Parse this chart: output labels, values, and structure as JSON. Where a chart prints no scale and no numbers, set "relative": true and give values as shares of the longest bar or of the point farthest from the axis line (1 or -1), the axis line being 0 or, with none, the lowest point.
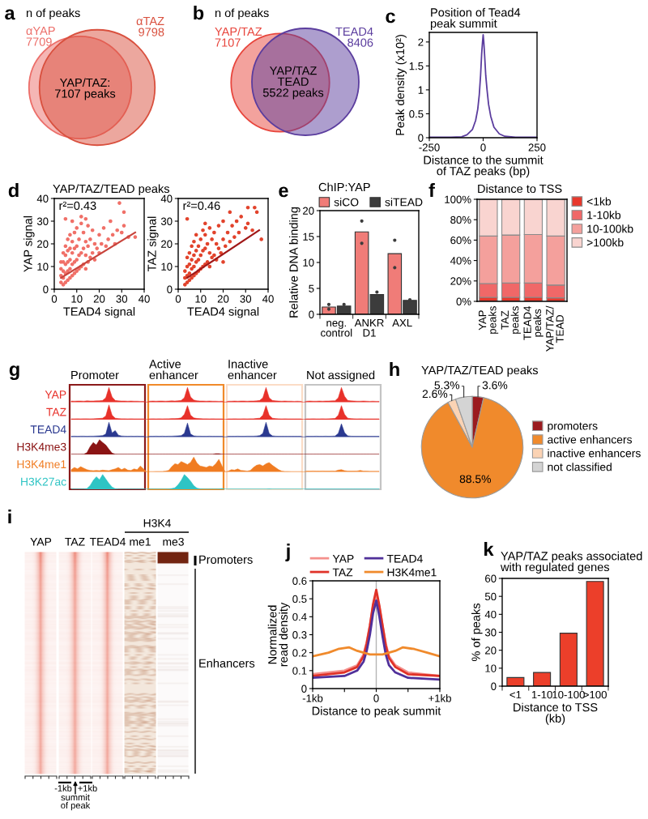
{
  "chart_data": [
    {
      "type": "other",
      "title": "a",
      "subtitle": "n of peaks",
      "categories": [
        "αYAP",
        "αTAZ"
      ],
      "values": [
        7709,
        9798
      ],
      "value_labels": [
        "7709",
        "9798"
      ],
      "colors": [
        "#ec6e69",
        "#d9503e"
      ],
      "annotations": [
        "YAP/TAZ:\n7107 peaks"
      ]
    },
    {
      "type": "other",
      "title": "b",
      "subtitle": "n of peaks",
      "categories": [
        "YAP/TAZ",
        "TEAD4"
      ],
      "values": [
        7107,
        8406
      ],
      "value_labels": [
        "7107",
        "8406"
      ],
      "colors": [
        "#e8453c",
        "#5b3d9e"
      ],
      "annotations": [
        "YAP/TAZ\nTEAD\n5522 peaks"
      ]
    },
    {
      "type": "line",
      "title": "c",
      "subtitle": "Position of Tead4\npeak summit",
      "xlabel": "Distance to the summit\nof TAZ peaks (bp)",
      "ylabel": "Peak density (x10²)",
      "x": [
        -250,
        -200,
        -150,
        -100,
        -75,
        -50,
        -35,
        -25,
        -18,
        -12,
        -7,
        -3,
        0,
        3,
        7,
        12,
        18,
        25,
        35,
        50,
        75,
        100,
        150,
        200,
        250
      ],
      "values": [
        0.01,
        0.01,
        0.01,
        0.02,
        0.06,
        0.17,
        0.36,
        0.6,
        0.9,
        1.3,
        1.75,
        2.0,
        2.15,
        2.0,
        1.7,
        1.3,
        1.0,
        0.7,
        0.45,
        0.22,
        0.08,
        0.03,
        0.01,
        0.01,
        0.01
      ],
      "color": "#5b3d9e",
      "xlim": [
        -250,
        250
      ],
      "xticks": [
        -250,
        0,
        250
      ],
      "ylim": [
        0,
        2.2
      ],
      "yticks": [
        0,
        0.5,
        1,
        1.5,
        2
      ]
    },
    {
      "type": "scatter",
      "title": "d",
      "subtitle": "YAP/TAZ/TEAD peaks",
      "xlabel": "TEAD4 signal",
      "ylabel": "YAP signal",
      "annotations": [
        "r²=0.43"
      ],
      "series": [
        {
          "type": "scatter",
          "color": "#f07068",
          "x": [
            3,
            3,
            3,
            3,
            4,
            4,
            4,
            4,
            4,
            5,
            5,
            5,
            5,
            5,
            6,
            6,
            6,
            6,
            6,
            7,
            7,
            7,
            7,
            7,
            8,
            8,
            8,
            8,
            9,
            9,
            9,
            9,
            10,
            10,
            10,
            10,
            11,
            11,
            11,
            12,
            12,
            12,
            13,
            13,
            13,
            14,
            14,
            14,
            15,
            15,
            15,
            16,
            16,
            17,
            17,
            18,
            18,
            19,
            20,
            20,
            21,
            22,
            23,
            24,
            25,
            26,
            27,
            28,
            30,
            31,
            33,
            36,
            5,
            29,
            31,
            14,
            12,
            8
          ],
          "values": [
            3,
            6,
            9,
            12,
            2,
            5,
            8,
            12,
            16,
            3,
            7,
            11,
            15,
            19,
            4,
            8,
            12,
            17,
            22,
            5,
            9,
            13,
            18,
            24,
            6,
            11,
            16,
            21,
            7,
            12,
            18,
            25,
            8,
            13,
            19,
            27,
            9,
            15,
            22,
            10,
            16,
            29,
            11,
            18,
            25,
            9,
            15,
            21,
            12,
            19,
            28,
            14,
            22,
            16,
            26,
            13,
            20,
            18,
            16,
            24,
            20,
            27,
            19,
            22,
            30,
            24,
            20,
            26,
            25,
            28,
            23,
            23,
            31,
            38,
            34,
            31,
            32,
            30
          ]
        },
        {
          "type": "line",
          "color": "#c8443c",
          "x": [
            3,
            36
          ],
          "values": [
            5,
            25
          ]
        }
      ],
      "xlim": [
        0,
        40
      ],
      "xticks": [
        0,
        10,
        20,
        30,
        40
      ],
      "ylim": [
        0,
        40
      ],
      "yticks": [
        0,
        10,
        20,
        30,
        40
      ]
    },
    {
      "type": "scatter",
      "xlabel": "TEAD4 signal",
      "ylabel": "TAZ signal",
      "annotations": [
        "r²=0.46"
      ],
      "series": [
        {
          "type": "scatter",
          "color": "#e2432c",
          "x": [
            3,
            3,
            3,
            4,
            4,
            4,
            4,
            5,
            5,
            5,
            5,
            6,
            6,
            6,
            6,
            7,
            7,
            7,
            7,
            8,
            8,
            8,
            8,
            9,
            9,
            9,
            10,
            10,
            10,
            11,
            11,
            11,
            12,
            12,
            12,
            13,
            13,
            14,
            14,
            14,
            15,
            15,
            16,
            16,
            17,
            17,
            18,
            18,
            19,
            20,
            20,
            21,
            22,
            23,
            24,
            25,
            26,
            27,
            28,
            30,
            31,
            33,
            35,
            34,
            23,
            31,
            4,
            37,
            20,
            12
          ],
          "values": [
            2,
            5,
            8,
            3,
            6,
            10,
            14,
            4,
            7,
            11,
            16,
            5,
            9,
            13,
            19,
            6,
            10,
            15,
            21,
            7,
            12,
            17,
            24,
            8,
            13,
            19,
            9,
            15,
            22,
            10,
            17,
            26,
            11,
            18,
            24,
            12,
            20,
            10,
            16,
            27,
            14,
            22,
            15,
            25,
            13,
            20,
            18,
            28,
            16,
            22,
            30,
            19,
            25,
            21,
            28,
            23,
            30,
            25,
            32,
            27,
            29,
            26,
            34,
            36,
            34,
            36,
            31,
            22,
            12,
            29
          ]
        },
        {
          "type": "line",
          "color": "#a01818",
          "x": [
            4,
            36
          ],
          "values": [
            5,
            26
          ]
        }
      ],
      "xlim": [
        0,
        40
      ],
      "xticks": [
        0,
        10,
        20,
        30,
        40
      ],
      "ylim": [
        0,
        40
      ],
      "yticks": [
        0,
        10,
        20,
        30,
        40
      ]
    },
    {
      "type": "bar",
      "title": "e",
      "subtitle": "ChIP:YAP",
      "ylabel": "Relative DNA binding",
      "categories": [
        "neg.\ncontrol",
        "ANKR\nD1",
        "AXL"
      ],
      "legend": "top",
      "marker": "circle",
      "series": [
        {
          "name": "siCO",
          "color": "#f07c78",
          "values": [
            1.4,
            15.9,
            11.7
          ]
        },
        {
          "name": "siTEAD",
          "color": "#3c3c3c",
          "values": [
            1.6,
            3.8,
            2.7
          ]
        },
        {
          "type": "scatter",
          "color": "#3c3c3c",
          "x": [
            "neg.\ncontrol",
            "neg.\ncontrol",
            "ANKR\nD1",
            "ANKR\nD1",
            "AXL",
            "AXL"
          ],
          "values": [
            1.9,
            1.0,
            18.0,
            13.7,
            14.3,
            9.0
          ]
        },
        {
          "type": "scatter",
          "color": "#3c3c3c",
          "x": [
            "neg.\ncontrol",
            "ANKR\nD1",
            "AXL"
          ],
          "values": [
            1.9,
            4.3,
            2.8
          ]
        }
      ],
      "ylim": [
        0,
        20
      ],
      "yticks": [
        0,
        5,
        10,
        15,
        20
      ]
    },
    {
      "type": "bar",
      "stacked": true,
      "title": "f",
      "subtitle": "Distance to TSS",
      "categories": [
        "YAP\npeaks",
        "TAZ\npeaks",
        "TEAD4\npeaks",
        "YAP/TAZ/\nTEAD"
      ],
      "legend": "right",
      "series": [
        {
          "name": "<1kb",
          "color": "#e8382c",
          "values": [
            4,
            4,
            4,
            3.5
          ]
        },
        {
          "name": "1-10kb",
          "color": "#f06868",
          "values": [
            13.5,
            14,
            14,
            12.5
          ]
        },
        {
          "name": "10-100kb",
          "color": "#f4a09c",
          "values": [
            46.5,
            47,
            47.5,
            48
          ]
        },
        {
          "name": ">100kb",
          "color": "#f9d4d0",
          "values": [
            36,
            35,
            34.5,
            36
          ]
        }
      ],
      "ylim": [
        0,
        100
      ],
      "yticks": [
        {
          "value": 0,
          "label": "0%"
        },
        {
          "value": 20,
          "label": "20%"
        },
        {
          "value": 40,
          "label": "40%"
        },
        {
          "value": 60,
          "label": "60%"
        },
        {
          "value": 80,
          "label": "80%"
        },
        {
          "value": 100,
          "label": "100%"
        }
      ]
    },
    {
      "type": "other",
      "title": "g",
      "categories": [
        "Promoter",
        "Active\nenhancer",
        "Inactive\nenhancer",
        "Not assigned"
      ],
      "colors": [
        "#8b1a1a",
        "#f08a2a",
        "#fbdcc6",
        "#c4c4c4"
      ]
    },
    {
      "type": "area",
      "relative": true,
      "categories": [
        null,
        null,
        null,
        null,
        null,
        null,
        null,
        null,
        null,
        null,
        null,
        null,
        null,
        null,
        null,
        null,
        null,
        null,
        null,
        null,
        null,
        null,
        null,
        null,
        null,
        null,
        null,
        null,
        null,
        null,
        null,
        null,
        null,
        null,
        null,
        null,
        null,
        null,
        null,
        null,
        null,
        null,
        null,
        null,
        null,
        null,
        null,
        null,
        null,
        null,
        null,
        null,
        null,
        null,
        null,
        null,
        null,
        null,
        null,
        null,
        null,
        null,
        null,
        null,
        null,
        null,
        null,
        null,
        null,
        null,
        null,
        null,
        null,
        null,
        null,
        null,
        null,
        null,
        null,
        null,
        null,
        null,
        null,
        null,
        null,
        null,
        null,
        null,
        null,
        null,
        null,
        null,
        null,
        null,
        null,
        null,
        null,
        null,
        null
      ],
      "series": [
        {
          "name": "YAP",
          "color": "#e8312a",
          "values": [
            0.08,
            0.07,
            0.08,
            0.08,
            0.07,
            0.09,
            0.08,
            0.08,
            0.09,
            0.1,
            0.12,
            0.3,
            1,
            0.35,
            0.12,
            0.09,
            0.08,
            0.08,
            0.07,
            0.08,
            0.07,
            0.07,
            0.06,
            0.06,
            null,
            0.07,
            0.08,
            0.07,
            0.08,
            0.08,
            0.07,
            0.08,
            0.09,
            0.08,
            0.1,
            0.12,
            0.3,
            1,
            0.35,
            0.15,
            0.1,
            0.08,
            0.08,
            0.07,
            0.08,
            0.07,
            0.07,
            0.06,
            0.07,
            null,
            0.07,
            0.07,
            0.08,
            0.07,
            0.08,
            0.08,
            0.07,
            0.08,
            0.08,
            0.09,
            0.12,
            0.3,
            1,
            0.3,
            0.12,
            0.09,
            0.08,
            0.07,
            0.08,
            0.07,
            0.07,
            0.06,
            0.07,
            0.06,
            null,
            0.07,
            0.08,
            0.07,
            0.07,
            0.08,
            0.07,
            0.08,
            0.08,
            0.09,
            0.1,
            0.3,
            1,
            0.4,
            0.12,
            0.09,
            0.08,
            0.07,
            0.07,
            0.08,
            0.07,
            0.06,
            0.07,
            0.06,
            0.06
          ]
        }
      ]
    },
    {
      "type": "area",
      "relative": true,
      "categories": [
        null,
        null,
        null,
        null,
        null,
        null,
        null,
        null,
        null,
        null,
        null,
        null,
        null,
        null,
        null,
        null,
        null,
        null,
        null,
        null,
        null,
        null,
        null,
        null,
        null,
        null,
        null,
        null,
        null,
        null,
        null,
        null,
        null,
        null,
        null,
        null,
        null,
        null,
        null,
        null,
        null,
        null,
        null,
        null,
        null,
        null,
        null,
        null,
        null,
        null,
        null,
        null,
        null,
        null,
        null,
        null,
        null,
        null,
        null,
        null,
        null,
        null,
        null,
        null,
        null,
        null,
        null,
        null,
        null,
        null,
        null,
        null,
        null,
        null,
        null,
        null,
        null,
        null,
        null,
        null,
        null,
        null,
        null,
        null,
        null,
        null,
        null,
        null,
        null,
        null,
        null,
        null,
        null,
        null,
        null,
        null,
        null,
        null,
        null
      ],
      "series": [
        {
          "name": "TAZ",
          "color": "#e8312a",
          "values": [
            0.05,
            0.05,
            0.06,
            0.05,
            0.06,
            0.06,
            0.05,
            0.06,
            0.07,
            0.08,
            0.1,
            0.25,
            1,
            0.3,
            0.1,
            0.07,
            0.06,
            0.06,
            0.05,
            0.06,
            0.05,
            0.05,
            0.05,
            0.05,
            null,
            0.05,
            0.06,
            0.05,
            0.06,
            0.05,
            0.06,
            0.06,
            0.07,
            0.07,
            0.08,
            0.12,
            0.35,
            0.95,
            0.3,
            0.12,
            0.08,
            0.07,
            0.06,
            0.06,
            0.05,
            0.06,
            0.05,
            0.05,
            0.05,
            null,
            0.05,
            0.05,
            0.06,
            0.05,
            0.05,
            0.06,
            0.05,
            0.06,
            0.06,
            0.08,
            0.1,
            0.3,
            0.95,
            0.3,
            0.1,
            0.07,
            0.06,
            0.05,
            0.06,
            0.05,
            0.05,
            0.05,
            0.05,
            0.05,
            null,
            0.05,
            0.05,
            0.06,
            0.05,
            0.05,
            0.06,
            0.05,
            0.06,
            0.07,
            0.08,
            0.3,
            0.95,
            0.35,
            0.1,
            0.07,
            0.06,
            0.05,
            0.06,
            0.05,
            0.05,
            0.05,
            0.05,
            0.05,
            0.05
          ]
        }
      ]
    },
    {
      "type": "area",
      "relative": true,
      "categories": [
        null,
        null,
        null,
        null,
        null,
        null,
        null,
        null,
        null,
        null,
        null,
        null,
        null,
        null,
        null,
        null,
        null,
        null,
        null,
        null,
        null,
        null,
        null,
        null,
        null,
        null,
        null,
        null,
        null,
        null,
        null,
        null,
        null,
        null,
        null,
        null,
        null,
        null,
        null,
        null,
        null,
        null,
        null,
        null,
        null,
        null,
        null,
        null,
        null,
        null,
        null,
        null,
        null,
        null,
        null,
        null,
        null,
        null,
        null,
        null,
        null,
        null,
        null,
        null,
        null,
        null,
        null,
        null,
        null,
        null,
        null,
        null,
        null,
        null,
        null,
        null,
        null,
        null,
        null,
        null,
        null,
        null,
        null,
        null,
        null,
        null,
        null,
        null,
        null,
        null,
        null,
        null,
        null,
        null,
        null,
        null,
        null,
        null,
        null
      ],
      "series": [
        {
          "name": "TEAD4",
          "color": "#2b3990",
          "values": [
            0.05,
            0.06,
            0.05,
            0.06,
            0.06,
            0.05,
            0.06,
            0.06,
            0.07,
            0.08,
            0.1,
            0.2,
            1,
            0.28,
            0.44,
            0.13,
            0.07,
            0.06,
            0.05,
            0.06,
            0.05,
            0.06,
            0.05,
            0.05,
            null,
            0.05,
            0.05,
            0.06,
            0.05,
            0.06,
            0.05,
            0.06,
            0.06,
            0.07,
            0.08,
            0.1,
            0.25,
            0.95,
            0.2,
            0.08,
            0.06,
            0.06,
            0.05,
            0.05,
            0.06,
            0.05,
            0.05,
            0.05,
            0.05,
            null,
            0.05,
            0.05,
            0.05,
            0.06,
            0.05,
            0.05,
            0.06,
            0.06,
            0.06,
            0.07,
            0.1,
            0.25,
            1,
            0.25,
            0.08,
            0.06,
            0.05,
            0.05,
            0.05,
            0.05,
            0.05,
            0.05,
            0.05,
            0.05,
            null,
            0.05,
            0.05,
            0.05,
            0.06,
            0.05,
            0.05,
            0.06,
            0.05,
            0.06,
            0.07,
            0.25,
            0.9,
            0.3,
            0.08,
            0.06,
            0.05,
            0.05,
            0.05,
            0.05,
            0.05,
            0.05,
            0.05,
            0.05,
            0.05
          ]
        }
      ]
    },
    {
      "type": "area",
      "relative": true,
      "categories": [
        null,
        null,
        null,
        null,
        null,
        null,
        null,
        null,
        null,
        null,
        null,
        null,
        null,
        null,
        null,
        null,
        null,
        null,
        null,
        null,
        null,
        null,
        null,
        null,
        null,
        null,
        null,
        null,
        null,
        null,
        null,
        null,
        null,
        null,
        null,
        null,
        null,
        null,
        null,
        null,
        null,
        null,
        null,
        null,
        null,
        null,
        null,
        null,
        null,
        null,
        null,
        null,
        null,
        null,
        null,
        null,
        null,
        null,
        null,
        null,
        null,
        null,
        null,
        null,
        null,
        null,
        null,
        null,
        null,
        null,
        null,
        null,
        null,
        null,
        null,
        null,
        null,
        null,
        null,
        null,
        null,
        null,
        null,
        null,
        null,
        null,
        null,
        null,
        null,
        null,
        null,
        null,
        null,
        null,
        null,
        null,
        null,
        null,
        null
      ],
      "series": [
        {
          "name": "H3K4me3",
          "color": "#8b1414",
          "values": [
            0.01,
            0.01,
            0.01,
            0.01,
            0.02,
            0.12,
            0.52,
            0.81,
            0.64,
            1,
            0.81,
            0.64,
            0.35,
            0.09,
            0.02,
            0.01,
            0.01,
            0.01,
            0.01,
            0.01,
            0.01,
            0.01,
            0.01,
            0.01,
            null,
            0.01,
            0.01,
            0.01,
            0.01,
            0.01,
            0.01,
            0.01,
            0.01,
            0.01,
            0.01,
            0.01,
            0.01,
            0.01,
            0.01,
            0.01,
            0.01,
            0.01,
            0.01,
            0.01,
            0.01,
            0.01,
            0.05,
            0.05,
            0.01,
            null,
            0.01,
            0.01,
            0.01,
            0.01,
            0.01,
            0.01,
            0.01,
            0.01,
            0.01,
            0.01,
            0.01,
            0.01,
            0.01,
            0.01,
            0.01,
            0.01,
            0.01,
            0.01,
            0.01,
            0.01,
            0.01,
            0.01,
            0.01,
            0.01,
            null,
            0.01,
            0.01,
            0.01,
            0.01,
            0.01,
            0.01,
            0.01,
            0.01,
            0.01,
            0.01,
            0.01,
            0.01,
            0.01,
            0.01,
            0.01,
            0.01,
            0.01,
            0.01,
            0.01,
            0.01,
            0.01,
            0.01,
            0.01,
            0.01
          ]
        }
      ]
    },
    {
      "type": "area",
      "relative": true,
      "categories": [
        null,
        null,
        null,
        null,
        null,
        null,
        null,
        null,
        null,
        null,
        null,
        null,
        null,
        null,
        null,
        null,
        null,
        null,
        null,
        null,
        null,
        null,
        null,
        null,
        null,
        null,
        null,
        null,
        null,
        null,
        null,
        null,
        null,
        null,
        null,
        null,
        null,
        null,
        null,
        null,
        null,
        null,
        null,
        null,
        null,
        null,
        null,
        null,
        null,
        null,
        null,
        null,
        null,
        null,
        null,
        null,
        null,
        null,
        null,
        null,
        null,
        null,
        null,
        null,
        null,
        null,
        null,
        null,
        null,
        null,
        null,
        null,
        null,
        null,
        null,
        null,
        null,
        null,
        null,
        null,
        null,
        null,
        null,
        null,
        null,
        null,
        null,
        null,
        null,
        null,
        null,
        null,
        null,
        null,
        null,
        null,
        null,
        null,
        null
      ],
      "series": [
        {
          "name": "H3K4me1",
          "color": "#f07c22",
          "values": [
            0.15,
            0.3,
            0.2,
            0.35,
            0.25,
            0.15,
            0.1,
            0.08,
            0.1,
            0.08,
            0.12,
            0.1,
            0.08,
            0.15,
            0.2,
            0.3,
            0.15,
            0.25,
            0.12,
            0.1,
            0.2,
            0.15,
            0.4,
            0.2,
            null,
            0.02,
            0.02,
            0.03,
            0.03,
            0.03,
            0.05,
            0.1,
            0.35,
            0.55,
            0.5,
            0.7,
            0.6,
            0.5,
            0.65,
            1,
            0.6,
            0.4,
            0.35,
            0.3,
            0.4,
            0.35,
            0.55,
            0.85,
            0.4,
            null,
            0.05,
            0.15,
            0.12,
            0.2,
            0.1,
            0.08,
            0.05,
            0.1,
            0.3,
            0.45,
            0.5,
            0.4,
            0.55,
            0.63,
            0.45,
            0.3,
            0.15,
            0.05,
            0.03,
            0.03,
            0.02,
            0.02,
            0.02,
            0.02,
            null,
            0.05,
            0.05,
            0.06,
            0.05,
            0.05,
            0.06,
            0.05,
            0.05,
            0.06,
            0.05,
            0.12,
            0.15,
            0.08,
            0.05,
            0.05,
            0.05,
            0.06,
            0.1,
            0.05,
            0.05,
            0.04,
            0.04,
            0.04,
            0.04
          ]
        }
      ]
    },
    {
      "type": "area",
      "relative": true,
      "categories": [
        null,
        null,
        null,
        null,
        null,
        null,
        null,
        null,
        null,
        null,
        null,
        null,
        null,
        null,
        null,
        null,
        null,
        null,
        null,
        null,
        null,
        null,
        null,
        null,
        null,
        null,
        null,
        null,
        null,
        null,
        null,
        null,
        null,
        null,
        null,
        null,
        null,
        null,
        null,
        null,
        null,
        null,
        null,
        null,
        null,
        null,
        null,
        null,
        null,
        null,
        null,
        null,
        null,
        null,
        null,
        null,
        null,
        null,
        null,
        null,
        null,
        null,
        null,
        null,
        null,
        null,
        null,
        null,
        null,
        null,
        null,
        null,
        null,
        null,
        null,
        null,
        null,
        null,
        null,
        null,
        null,
        null,
        null,
        null,
        null,
        null,
        null,
        null,
        null,
        null,
        null,
        null,
        null,
        null,
        null,
        null,
        null,
        null,
        null
      ],
      "series": [
        {
          "name": "H3K27ac",
          "color": "#2ec4c4",
          "values": [
            0.01,
            0.01,
            0.01,
            0.02,
            0.02,
            0.05,
            0.25,
            0.6,
            0.85,
            0.65,
            1,
            0.7,
            0.4,
            0.15,
            0.04,
            0.02,
            0.01,
            0.01,
            0.01,
            0.01,
            0.01,
            0.01,
            0.01,
            0.01,
            null,
            0.01,
            0.01,
            0.01,
            0.01,
            0.01,
            0.01,
            0.02,
            0.05,
            0.1,
            0.3,
            0.6,
            1,
            0.8,
            0.55,
            0.25,
            0.08,
            0.03,
            0.01,
            0.01,
            0.01,
            0.01,
            0.01,
            0.02,
            0.05,
            null,
            0.01,
            0.01,
            0.01,
            0.01,
            0.01,
            0.01,
            0.01,
            0.01,
            0.01,
            0.01,
            0.01,
            0.01,
            0.01,
            0.03,
            0.01,
            0.01,
            0.01,
            0.01,
            0.01,
            0.01,
            0.01,
            0.01,
            0.01,
            0.01,
            null,
            0.01,
            0.01,
            0.01,
            0.01,
            0.01,
            0.01,
            0.01,
            0.01,
            0.01,
            0.01,
            0.01,
            0.01,
            0.01,
            0.01,
            0.01,
            0.01,
            0.01,
            0.01,
            0.01,
            0.01,
            0.01,
            0.01,
            0.01,
            0.01
          ]
        }
      ]
    },
    {
      "type": "pie",
      "title": "h",
      "subtitle": "YAP/TAZ/TEAD peaks",
      "categories": [
        "promoters",
        "active enhancers",
        "inactive enhancers",
        "not classified"
      ],
      "values": [
        3.6,
        88.5,
        2.6,
        5.3
      ],
      "value_labels": [
        "3.6%",
        "88.5%",
        "2.6%",
        "5.3%"
      ],
      "colors": [
        "#9b1b1f",
        "#f08a2c",
        "#fbd3b4",
        "#d4d4d4"
      ],
      "legend": "right"
    },
    {
      "type": "other",
      "title": "i",
      "categories": [
        "YAP",
        "TAZ",
        "TEAD4",
        "me1",
        "me3"
      ],
      "annotations": [
        "H3K4",
        "Promoters",
        "Enhancers",
        "-1kb",
        "+1kb",
        "summit\nof peak"
      ]
    },
    {
      "type": "line",
      "title": "j",
      "xlabel": "Distance to peak summit",
      "ylabel": "Normalized\nread density",
      "legend": "top",
      "series": [
        {
          "name": "YAP",
          "color": "#f4908c",
          "x": [
            -1,
            -0.5,
            -0.3,
            -0.2,
            -0.15,
            -0.1,
            -0.05,
            0,
            0.05,
            0.1,
            0.15,
            0.2,
            0.3,
            0.5,
            1
          ],
          "values": [
            0.08,
            0.1,
            0.13,
            0.19,
            0.26,
            0.35,
            0.46,
            0.53,
            0.45,
            0.35,
            0.25,
            0.18,
            0.13,
            0.09,
            0.07
          ]
        },
        {
          "name": "TAZ",
          "color": "#e03228",
          "x": [
            -1,
            -0.5,
            -0.3,
            -0.2,
            -0.15,
            -0.1,
            -0.05,
            0,
            0.05,
            0.1,
            0.15,
            0.2,
            0.3,
            0.5,
            1
          ],
          "values": [
            0.07,
            0.09,
            0.12,
            0.18,
            0.25,
            0.35,
            0.47,
            0.55,
            0.46,
            0.35,
            0.24,
            0.17,
            0.12,
            0.08,
            0.07
          ]
        },
        {
          "name": "TEAD4",
          "color": "#50309a",
          "x": [
            -1,
            -0.5,
            -0.3,
            -0.2,
            -0.15,
            -0.1,
            -0.05,
            0,
            0.05,
            0.1,
            0.15,
            0.2,
            0.3,
            0.5,
            1
          ],
          "values": [
            0.06,
            0.07,
            0.1,
            0.15,
            0.21,
            0.3,
            0.42,
            0.49,
            0.4,
            0.29,
            0.19,
            0.13,
            0.09,
            0.06,
            0.05
          ]
        },
        {
          "name": "H3K4me1",
          "color": "#f08a2c",
          "x": [
            -1,
            -0.75,
            -0.6,
            -0.43,
            -0.3,
            -0.2,
            -0.1,
            0,
            0.1,
            0.2,
            0.3,
            0.42,
            0.6,
            0.8,
            1
          ],
          "values": [
            0.18,
            0.2,
            0.22,
            0.23,
            0.21,
            0.2,
            0.19,
            0.19,
            0.19,
            0.2,
            0.21,
            0.23,
            0.22,
            0.2,
            0.18
          ]
        }
      ],
      "ref_lines": [
        {
          "axis": "x",
          "value": 0,
          "color": "#b4b4b4"
        }
      ],
      "xlim": [
        -1,
        1
      ],
      "xticks": [
        {
          "value": -1,
          "label": "-1kb"
        },
        {
          "value": -0.5,
          "label": null
        },
        0,
        {
          "value": 0.5,
          "label": null
        },
        {
          "value": 1,
          "label": "+1kb"
        }
      ],
      "ylim": [
        0,
        0.6
      ],
      "yticks": [
        0,
        0.1,
        0.2,
        0.3,
        0.4,
        0.5,
        0.6
      ]
    },
    {
      "type": "bar",
      "title": "k",
      "subtitle": "YAP/TAZ peaks associated\nwith regulated genes",
      "xlabel": "Distance to TSS\n(kb)",
      "ylabel": "% of peaks",
      "categories": [
        "<1",
        "1-10",
        "10-100",
        ">100"
      ],
      "values": [
        4.8,
        7.6,
        29.5,
        58.3
      ],
      "color": "#ec3f2a",
      "ylim": [
        0,
        60
      ],
      "yticks": [
        0,
        10,
        20,
        30,
        40,
        50,
        60
      ]
    }
  ]
}
